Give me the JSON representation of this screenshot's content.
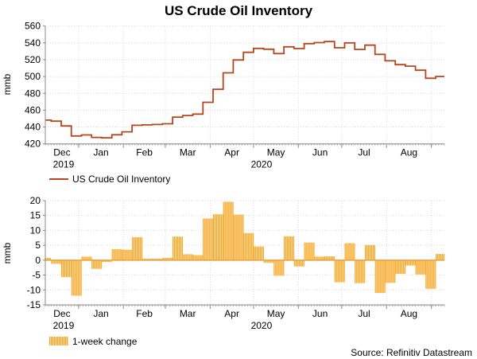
{
  "colors": {
    "line": "#b5461d",
    "bars": "#f6a623",
    "grid": "#d9d9d9",
    "zero_line": "#e8a040"
  },
  "source": "Source: Refinitiv Datastream",
  "chart_data": [
    {
      "type": "line",
      "title": "US Crude Oil Inventory",
      "ylabel": "mmb",
      "ylim": [
        420,
        560
      ],
      "yticks": [
        "420",
        "440",
        "460",
        "480",
        "500",
        "520",
        "540",
        "560"
      ],
      "x_month_labels": [
        "Dec",
        "Jan",
        "Feb",
        "Mar",
        "Apr",
        "May",
        "Jun",
        "Jul",
        "Aug"
      ],
      "x_year_labels": [
        "2019",
        "2020"
      ],
      "xlim": [
        "2019-12-09",
        "2020-09-10"
      ],
      "grid": true,
      "legend": "bottom-left",
      "series": [
        {
          "name": "US Crude Oil Inventory",
          "x": [
            "2019-12-06",
            "2019-12-13",
            "2019-12-20",
            "2019-12-27",
            "2020-01-03",
            "2020-01-10",
            "2020-01-17",
            "2020-01-24",
            "2020-01-31",
            "2020-02-07",
            "2020-02-14",
            "2020-02-21",
            "2020-02-28",
            "2020-03-06",
            "2020-03-13",
            "2020-03-20",
            "2020-03-27",
            "2020-04-03",
            "2020-04-10",
            "2020-04-17",
            "2020-04-24",
            "2020-05-01",
            "2020-05-08",
            "2020-05-15",
            "2020-05-22",
            "2020-05-29",
            "2020-06-05",
            "2020-06-12",
            "2020-06-19",
            "2020-06-26",
            "2020-07-03",
            "2020-07-10",
            "2020-07-17",
            "2020-07-24",
            "2020-07-31",
            "2020-08-07",
            "2020-08-14",
            "2020-08-21",
            "2020-08-28",
            "2020-09-04"
          ],
          "values": [
            448.2,
            447.0,
            441.3,
            429.4,
            430.6,
            427.7,
            427.1,
            430.8,
            434.3,
            442.0,
            442.5,
            443.0,
            443.8,
            451.7,
            453.7,
            455.4,
            469.4,
            484.8,
            504.4,
            519.7,
            528.8,
            533.4,
            532.5,
            527.3,
            535.3,
            533.2,
            539.1,
            540.3,
            541.6,
            534.2,
            539.9,
            532.2,
            537.3,
            526.3,
            518.7,
            514.1,
            512.3,
            507.5,
            497.9,
            500.0
          ]
        }
      ]
    },
    {
      "type": "bar",
      "ylabel": "mmb",
      "ylim": [
        -15,
        20
      ],
      "yticks": [
        "-15",
        "-10",
        "-5",
        "0",
        "5",
        "10",
        "15",
        "20"
      ],
      "x_month_labels": [
        "Dec",
        "Jan",
        "Feb",
        "Mar",
        "Apr",
        "May",
        "Jun",
        "Jul",
        "Aug"
      ],
      "x_year_labels": [
        "2019",
        "2020"
      ],
      "xlim": [
        "2019-12-09",
        "2020-09-10"
      ],
      "grid": true,
      "legend": "bottom-left",
      "series": [
        {
          "name": "1-week change",
          "values": [
            0.8,
            -1.2,
            -5.7,
            -11.9,
            1.2,
            -2.9,
            -0.6,
            3.7,
            3.5,
            7.7,
            0.5,
            0.5,
            0.8,
            7.9,
            2.0,
            1.7,
            14.0,
            15.4,
            19.6,
            15.3,
            9.1,
            4.6,
            -0.9,
            -5.2,
            8.0,
            -2.1,
            5.9,
            1.2,
            1.3,
            -7.4,
            5.7,
            -7.7,
            5.1,
            -11.0,
            -7.6,
            -4.6,
            -1.8,
            -4.8,
            -9.6,
            2.1
          ]
        }
      ]
    }
  ]
}
